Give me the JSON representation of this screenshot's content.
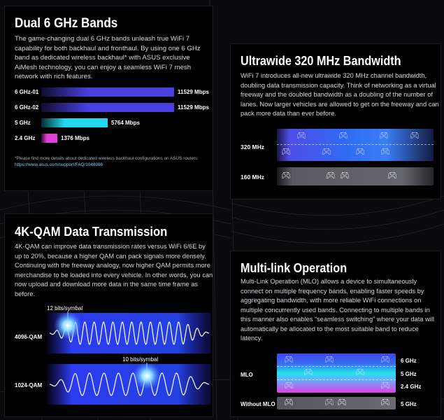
{
  "dual_band": {
    "title": "Dual 6 GHz Bands",
    "body": "The game-changing dual 6 GHz bands unleash true WiFi 7 capability for both backhaul and fronthaul. By using one 6 GHz band as dedicated wireless backhaul* with ASUS exclusive AiMesh technology, you can enjoy a seamless WiFi 7 mesh network with rich features.",
    "bars": [
      {
        "band": "6 GHz-01",
        "speed": "11529 Mbps",
        "mbps": 11529,
        "color": "#4a3ee0"
      },
      {
        "band": "6 GHz-02",
        "speed": "11529 Mbps",
        "mbps": 11529,
        "color": "#4a3ee0"
      },
      {
        "band": "5 GHz",
        "speed": "5764 Mbps",
        "mbps": 5764,
        "color": "#22d8ef"
      },
      {
        "band": "2.4 GHz",
        "speed": "1376 Mbps",
        "mbps": 1376,
        "color": "#e23fd8"
      }
    ],
    "footnote": "*Please find more details about dedicated wireless backhaul configurations on ASUS routers: ",
    "footnote_link": "https://www.asus.com/support/FAQ/1048086"
  },
  "bandwidth": {
    "title": "Ultrawide 320 MHz Bandwidth",
    "body": "WiFi 7 introduces all-new ultrawide 320 MHz channel bandwidth, doubling data transmission capacity. Think of networking as a virtual freeway and the doubled bandwidth as a doubling of the number of lanes. Now larger vehicles are allowed to get on the freeway and can pack more data than ever before.",
    "lane_wide": "320 MHz",
    "lane_narrow": "160 MHz"
  },
  "qam": {
    "title": "4K-QAM Data Transmission",
    "body": "4K-QAM can improve data transmission rates versus WiFi 6/6E by up to 20%, because a higher QAM can pack signals more densely. Continuing with the freeway analogy, now higher QAM permits more merchandise to be loaded into every vehicle. In other words, you can now upload and download more data in the same time frame as before.",
    "wave1_label": "4096-QAM",
    "wave1_bits": "12 bits/symbal",
    "wave2_label": "1024-QAM",
    "wave2_bits": "10 bits/symbal"
  },
  "mlo": {
    "title": "Multi-link Operation",
    "body": "Multi-Link Operation (MLO) allows a device to simultaneously connect on multiple frequency bands, enabling faster speeds by aggregating bandwidth, with more reliable WiFi connections on multiple concurrently used bands. Connecting to multiple bands in this manner also enables “seamless switching” where your data will automatically be allocated to the most suitable band to reduce latency.",
    "label_mlo": "MLO",
    "label_without": "Without MLO",
    "band_6": "6 GHz",
    "band_5": "5 GHz",
    "band_24": "2.4 GHz",
    "band_without": "5 GHz"
  },
  "icons": {
    "vehicle": "gamepad-icon"
  }
}
